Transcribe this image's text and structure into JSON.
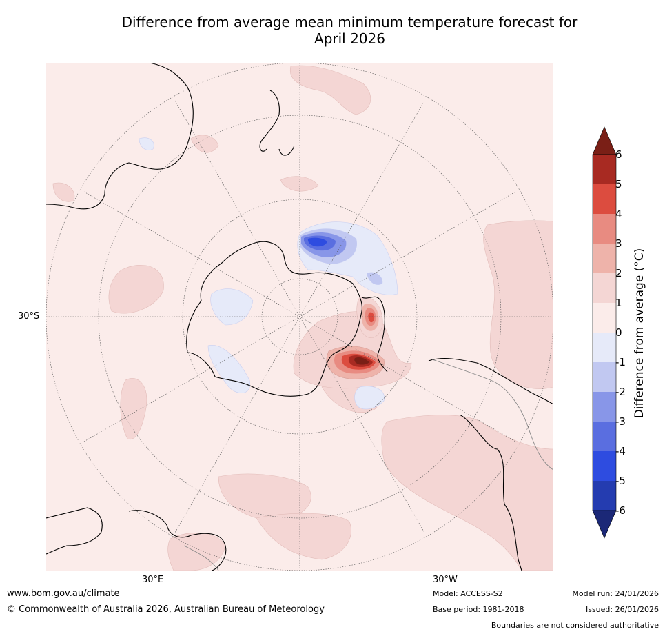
{
  "title": {
    "line1": "Difference from average mean minimum temperature forecast for",
    "line2": "April 2026"
  },
  "map": {
    "projection": "South polar stereographic",
    "lat_label": "30°S",
    "lon_labels": [
      "30°E",
      "30°W"
    ]
  },
  "colorbar": {
    "label": "Difference from average (°C)",
    "ticks": [
      "6",
      "5",
      "4",
      "3",
      "2",
      "1",
      "0",
      "-1",
      "-2",
      "-3",
      "-4",
      "-5",
      "-6"
    ],
    "colors": {
      "over": "#7a1f16",
      "5to6": "#a82a22",
      "4to5": "#dc4c3f",
      "3to4": "#e88b81",
      "2to3": "#eeb3aa",
      "1to2": "#f4d6d4",
      "0to1": "#fbecea",
      "m1to0": "#e6eaf9",
      "m2tom1": "#c1c8f1",
      "m3tom2": "#8896e8",
      "m4tom3": "#5a6ee0",
      "m5tom4": "#2e4ce0",
      "m6tom5": "#243cb0",
      "under": "#1b2877"
    }
  },
  "footer": {
    "website": "www.bom.gov.au/climate",
    "copyright": "© Commonwealth of Australia 2026, Australian Bureau of Meteorology",
    "model": "Model: ACCESS-S2",
    "base_period": "Base period: 1981-2018",
    "model_run": "Model run: 24/01/2026",
    "issued": "Issued: 26/01/2026",
    "disclaimer": "Boundaries are not considered authoritative"
  }
}
